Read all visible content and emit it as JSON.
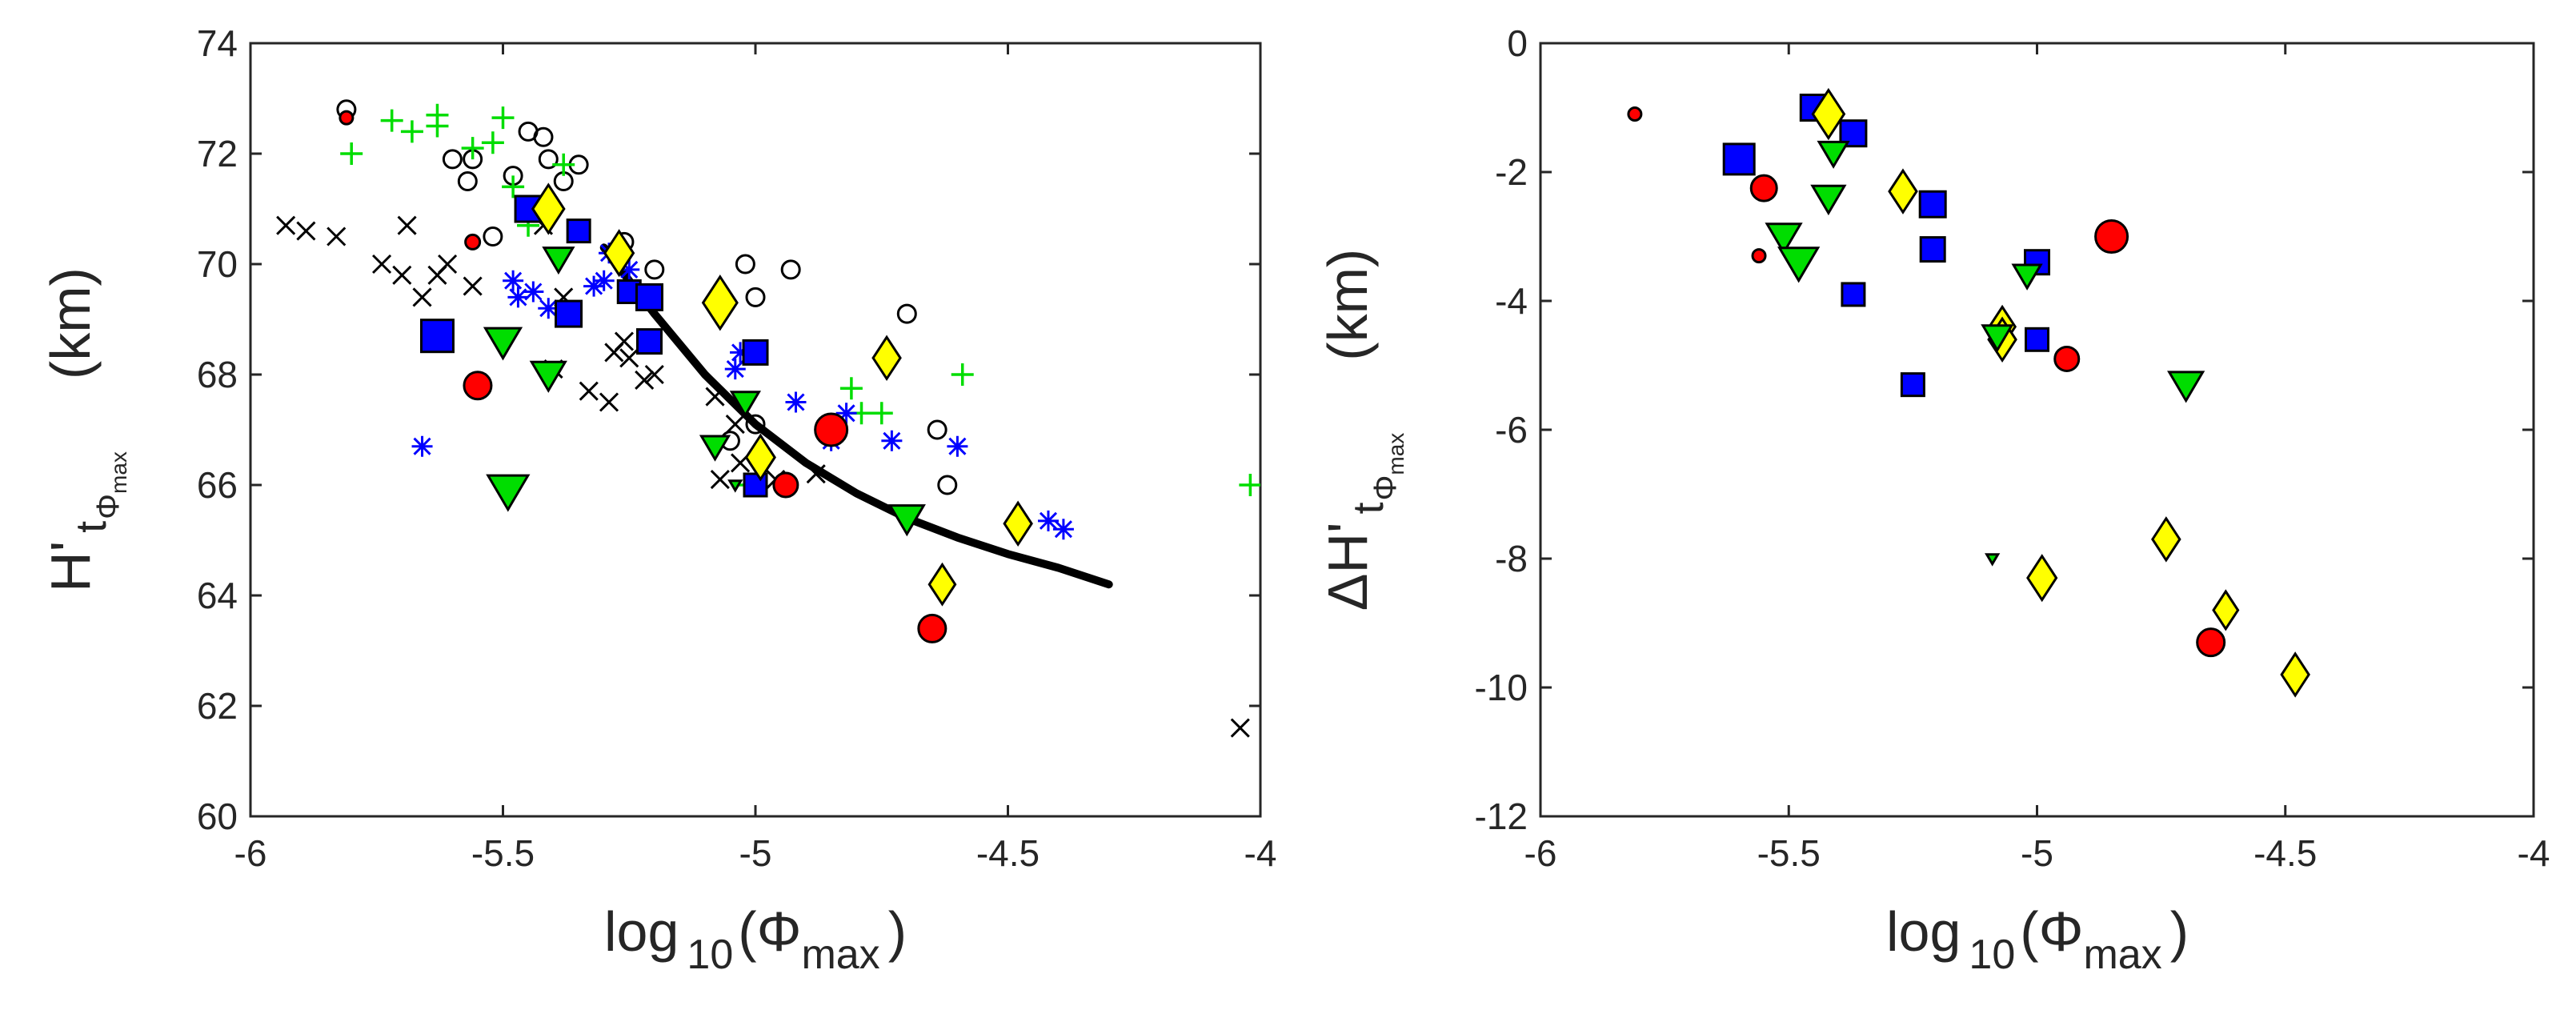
{
  "chart_data": [
    {
      "type": "scatter",
      "xlabel": {
        "main": "log",
        "sub": "10",
        "paren_open": "(Φ",
        "sub2": "max",
        "paren_close": ")"
      },
      "ylabel": {
        "main": "H'",
        "sub": "t",
        "subsub": "Φ",
        "subsubsub": "max",
        "unit": "(km)"
      },
      "xlim": [
        -6,
        -4
      ],
      "ylim": [
        60,
        74
      ],
      "xticks": [
        -6,
        -5.5,
        -5,
        -4.5,
        -4
      ],
      "xtick_labels": [
        "-6",
        "-5.5",
        "-5",
        "-4.5",
        "-4"
      ],
      "yticks": [
        60,
        62,
        64,
        66,
        68,
        70,
        72,
        74
      ],
      "ytick_labels": [
        "60",
        "62",
        "64",
        "66",
        "68",
        "70",
        "72",
        "74"
      ],
      "curve": {
        "color": "#000000",
        "x": [
          -5.3,
          -5.2,
          -5.1,
          -5.0,
          -4.9,
          -4.8,
          -4.7,
          -4.6,
          -4.5,
          -4.4,
          -4.3
        ],
        "y": [
          70.3,
          69.1,
          68.0,
          67.1,
          66.4,
          65.85,
          65.4,
          65.05,
          64.75,
          64.5,
          64.2
        ]
      },
      "series": [
        {
          "name": "black-x",
          "marker": "x",
          "color": "#000000",
          "points": [
            [
              -5.93,
              70.7
            ],
            [
              -5.89,
              70.6
            ],
            [
              -5.83,
              70.5
            ],
            [
              -5.74,
              70.0
            ],
            [
              -5.7,
              69.8
            ],
            [
              -5.69,
              70.7
            ],
            [
              -5.66,
              69.4
            ],
            [
              -5.63,
              69.8
            ],
            [
              -5.61,
              70.0
            ],
            [
              -5.56,
              69.6
            ],
            [
              -5.42,
              70.7
            ],
            [
              -5.4,
              68.1
            ],
            [
              -5.38,
              69.4
            ],
            [
              -5.33,
              67.7
            ],
            [
              -5.29,
              67.5
            ],
            [
              -5.28,
              68.4
            ],
            [
              -5.26,
              68.6
            ],
            [
              -5.25,
              68.3
            ],
            [
              -5.22,
              67.9
            ],
            [
              -5.2,
              68.0
            ],
            [
              -5.08,
              67.6
            ],
            [
              -5.07,
              66.1
            ],
            [
              -5.04,
              67.1
            ],
            [
              -5.03,
              66.4
            ],
            [
              -4.96,
              66.1
            ],
            [
              -4.88,
              66.2
            ],
            [
              -4.04,
              61.6
            ]
          ]
        },
        {
          "name": "black-open-circle",
          "marker": "circle-open",
          "color": "#000000",
          "points": [
            [
              -5.81,
              72.8
            ],
            [
              -5.6,
              71.9
            ],
            [
              -5.57,
              71.5
            ],
            [
              -5.56,
              71.9
            ],
            [
              -5.52,
              70.5
            ],
            [
              -5.48,
              71.6
            ],
            [
              -5.45,
              72.4
            ],
            [
              -5.42,
              72.3
            ],
            [
              -5.41,
              71.9
            ],
            [
              -5.38,
              71.5
            ],
            [
              -5.35,
              71.8
            ],
            [
              -5.26,
              70.4
            ],
            [
              -5.2,
              69.9
            ],
            [
              -5.05,
              66.8
            ],
            [
              -5.02,
              70.0
            ],
            [
              -5.0,
              69.4
            ],
            [
              -5.0,
              67.1
            ],
            [
              -4.93,
              69.9
            ],
            [
              -4.7,
              69.1
            ],
            [
              -4.64,
              67.0
            ],
            [
              -4.62,
              66.0
            ]
          ]
        },
        {
          "name": "green-plus",
          "marker": "plus",
          "color": "#00dd00",
          "points": [
            [
              -5.8,
              72.0
            ],
            [
              -5.72,
              72.6
            ],
            [
              -5.68,
              72.4
            ],
            [
              -5.63,
              72.7
            ],
            [
              -5.63,
              72.5
            ],
            [
              -5.56,
              72.1
            ],
            [
              -5.52,
              72.2
            ],
            [
              -5.5,
              72.65
            ],
            [
              -5.48,
              71.4
            ],
            [
              -5.45,
              70.7
            ],
            [
              -5.38,
              71.8
            ],
            [
              -5.02,
              66.0
            ],
            [
              -4.81,
              67.75
            ],
            [
              -4.79,
              67.3
            ],
            [
              -4.75,
              67.3
            ],
            [
              -4.59,
              68.0
            ],
            [
              -4.02,
              66.0
            ]
          ]
        },
        {
          "name": "blue-star",
          "marker": "star",
          "color": "#0000ff",
          "points": [
            [
              -5.66,
              66.7
            ],
            [
              -5.48,
              69.7
            ],
            [
              -5.47,
              69.4
            ],
            [
              -5.44,
              69.5
            ],
            [
              -5.41,
              69.2
            ],
            [
              -5.32,
              69.6
            ],
            [
              -5.3,
              69.7
            ],
            [
              -5.29,
              70.2
            ],
            [
              -5.25,
              69.9
            ],
            [
              -5.04,
              68.1
            ],
            [
              -5.03,
              68.4
            ],
            [
              -4.92,
              67.5
            ],
            [
              -4.85,
              66.8
            ],
            [
              -4.82,
              67.3
            ],
            [
              -4.73,
              66.8
            ],
            [
              -4.6,
              66.7
            ],
            [
              -4.42,
              65.35
            ],
            [
              -4.39,
              65.2
            ]
          ]
        },
        {
          "name": "red-circle",
          "marker": "circle-filled",
          "color": "#ff0000",
          "points": [
            [
              -5.81,
              72.65,
              16
            ],
            [
              -5.56,
              70.4,
              18
            ],
            [
              -5.55,
              67.8,
              34
            ],
            [
              -4.94,
              66.0,
              30
            ],
            [
              -4.85,
              67.0,
              40
            ],
            [
              -4.65,
              63.4,
              34
            ]
          ]
        },
        {
          "name": "blue-square",
          "marker": "square",
          "color": "#0000ff",
          "points": [
            [
              -5.63,
              68.7,
              40
            ],
            [
              -5.45,
              71.0,
              32
            ],
            [
              -5.37,
              69.1,
              32
            ],
            [
              -5.35,
              70.6,
              28
            ],
            [
              -5.25,
              69.5,
              28
            ],
            [
              -5.21,
              69.4,
              32
            ],
            [
              -5.21,
              68.6,
              30
            ],
            [
              -5.0,
              68.4,
              30
            ],
            [
              -5.0,
              66.0,
              28
            ]
          ]
        },
        {
          "name": "yellow-diamond",
          "marker": "diamond",
          "color": "#ffff00",
          "points": [
            [
              -5.41,
              71.0,
              46
            ],
            [
              -5.27,
              70.2,
              42
            ],
            [
              -5.07,
              69.3,
              50
            ],
            [
              -4.99,
              66.5,
              42
            ],
            [
              -4.74,
              68.3,
              40
            ],
            [
              -4.63,
              64.2,
              38
            ],
            [
              -4.48,
              65.3,
              40
            ]
          ]
        },
        {
          "name": "green-triangle",
          "marker": "triangle-down",
          "color": "#00dd00",
          "points": [
            [
              -5.5,
              68.6,
              44
            ],
            [
              -5.49,
              65.9,
              50
            ],
            [
              -5.41,
              68.0,
              42
            ],
            [
              -5.39,
              70.1,
              36
            ],
            [
              -5.08,
              66.7,
              34
            ],
            [
              -5.04,
              66.0,
              14
            ],
            [
              -5.02,
              67.5,
              34
            ],
            [
              -4.7,
              65.4,
              42
            ]
          ]
        }
      ]
    },
    {
      "type": "scatter",
      "xlabel": {
        "main": "log",
        "sub": "10",
        "paren_open": "(Φ",
        "sub2": "max",
        "paren_close": ")"
      },
      "ylabel": {
        "main": "ΔH'",
        "sub": "t",
        "subsub": "Φ",
        "subsubsub": "max",
        "unit": "(km)"
      },
      "xlim": [
        -6,
        -4
      ],
      "ylim": [
        -12,
        0
      ],
      "xticks": [
        -6,
        -5.5,
        -5,
        -4.5,
        -4
      ],
      "xtick_labels": [
        "-6",
        "-5.5",
        "-5",
        "-4.5",
        "-4"
      ],
      "yticks": [
        -12,
        -10,
        -8,
        -6,
        -4,
        -2,
        0
      ],
      "ytick_labels": [
        "-12",
        "-10",
        "-8",
        "-6",
        "-4",
        "-2",
        "0"
      ],
      "series": [
        {
          "name": "red-circle",
          "marker": "circle-filled",
          "color": "#ff0000",
          "points": [
            [
              -5.81,
              -1.1,
              16
            ],
            [
              -5.56,
              -3.3,
              16
            ],
            [
              -5.55,
              -2.25,
              32
            ],
            [
              -4.94,
              -4.9,
              30
            ],
            [
              -4.85,
              -3.0,
              40
            ],
            [
              -4.65,
              -9.3,
              34
            ]
          ]
        },
        {
          "name": "blue-square",
          "marker": "square",
          "color": "#0000ff",
          "points": [
            [
              -5.6,
              -1.8,
              38
            ],
            [
              -5.45,
              -1.0,
              32
            ],
            [
              -5.37,
              -1.4,
              32
            ],
            [
              -5.37,
              -3.9,
              28
            ],
            [
              -5.25,
              -5.3,
              28
            ],
            [
              -5.21,
              -2.5,
              32
            ],
            [
              -5.21,
              -3.2,
              30
            ],
            [
              -5.0,
              -3.4,
              30
            ],
            [
              -5.0,
              -4.6,
              28
            ]
          ]
        },
        {
          "name": "yellow-diamond",
          "marker": "diamond",
          "color": "#ffff00",
          "points": [
            [
              -5.42,
              -1.1,
              46
            ],
            [
              -5.27,
              -2.3,
              40
            ],
            [
              -5.07,
              -4.4,
              38
            ],
            [
              -5.07,
              -4.6,
              40
            ],
            [
              -4.99,
              -8.3,
              42
            ],
            [
              -4.74,
              -7.7,
              40
            ],
            [
              -4.62,
              -8.8,
              36
            ],
            [
              -4.48,
              -9.8,
              40
            ]
          ]
        },
        {
          "name": "green-triangle",
          "marker": "triangle-down",
          "color": "#00dd00",
          "points": [
            [
              -5.51,
              -3.0,
              42
            ],
            [
              -5.48,
              -3.4,
              48
            ],
            [
              -5.42,
              -2.4,
              40
            ],
            [
              -5.41,
              -1.7,
              36
            ],
            [
              -5.08,
              -4.55,
              36
            ],
            [
              -5.09,
              -8.0,
              14
            ],
            [
              -5.02,
              -3.6,
              34
            ],
            [
              -4.7,
              -5.3,
              42
            ]
          ]
        }
      ]
    }
  ]
}
